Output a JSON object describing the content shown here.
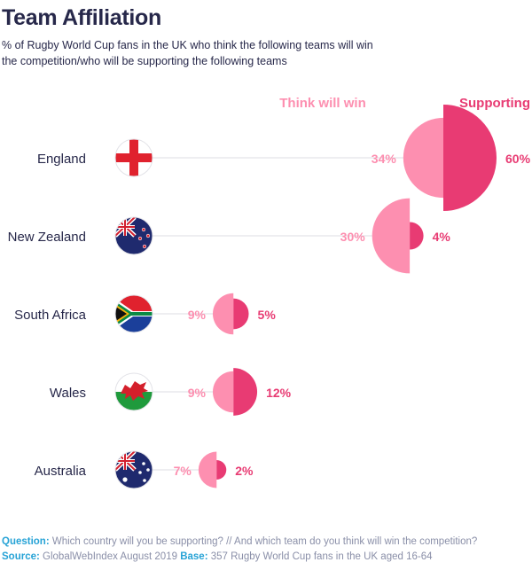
{
  "header": {
    "title": "Team Affiliation",
    "subtitle": "% of Rugby World Cup fans in the UK who think the following teams will win the competition/who will be supporting the following teams"
  },
  "footer": {
    "question_label": "Question:",
    "question_text": "Which country will you be supporting? // And which team do you think will win the competition?",
    "source_label": "Source:",
    "source_text": "GlobalWebIndex August 2019",
    "base_label": "Base:",
    "base_text": "357 Rugby World Cup fans in the UK aged 16-64"
  },
  "colors": {
    "think": "#fd8fb0",
    "support": "#e83b73",
    "text": "#27284a",
    "line": "#dcdde3"
  },
  "chart_data": {
    "type": "paired-semicircle",
    "series": [
      {
        "name": "Think will win",
        "values": [
          34,
          30,
          9,
          9,
          7
        ],
        "color": "#fd8fb0"
      },
      {
        "name": "Supporting",
        "values": [
          60,
          4,
          5,
          12,
          2
        ],
        "color": "#e83b73"
      }
    ],
    "categories": [
      "England",
      "New Zealand",
      "South Africa",
      "Wales",
      "Australia"
    ],
    "value_labels": {
      "think": [
        "34%",
        "30%",
        "9%",
        "9%",
        "7%"
      ],
      "support": [
        "60%",
        "4%",
        "5%",
        "12%",
        "2%"
      ]
    },
    "flags": [
      "england-flag",
      "new-zealand-flag",
      "south-africa-flag",
      "wales-flag",
      "australia-flag"
    ],
    "legend": [
      "Think will win",
      "Supporting"
    ],
    "legend_position": "top-right"
  }
}
